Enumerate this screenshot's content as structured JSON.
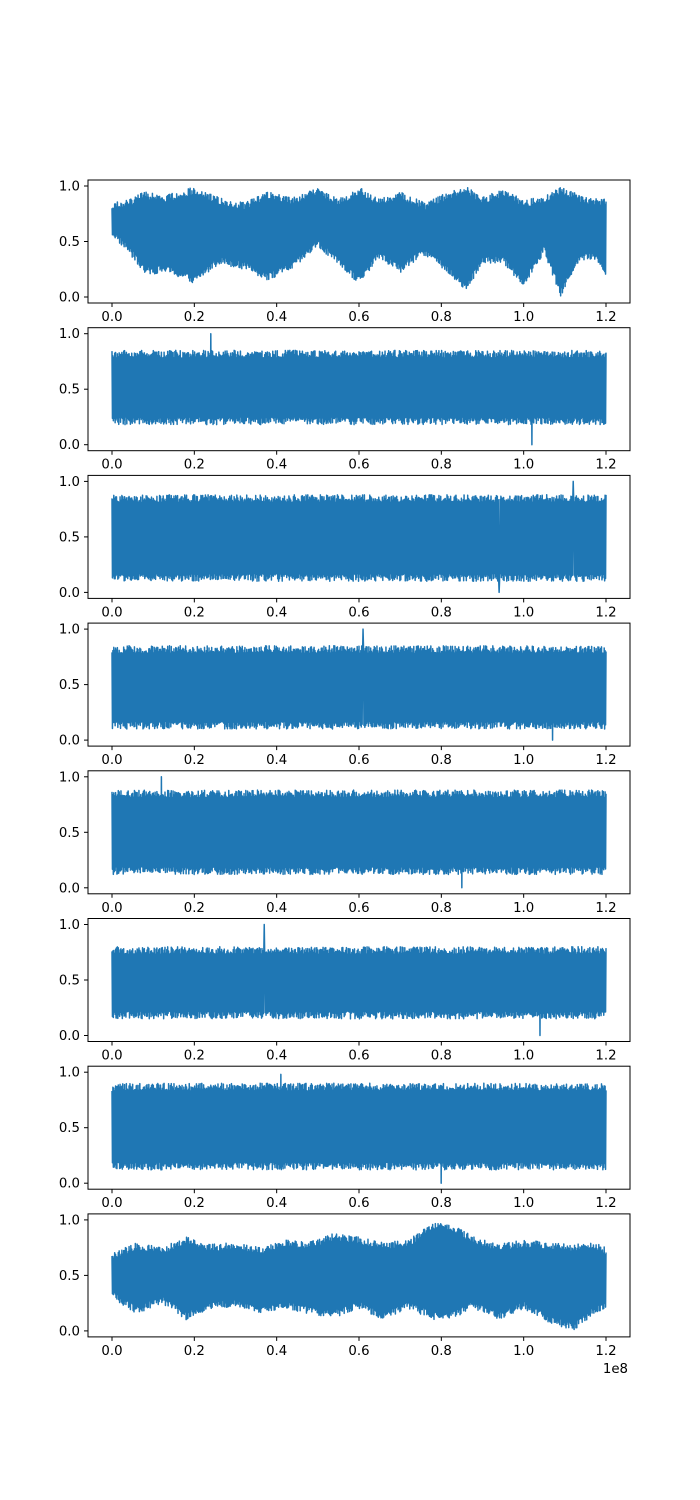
{
  "chart_data": {
    "type": "line",
    "layout": "8 vertically stacked panels sharing the same x range",
    "x_offset_label": "1e8",
    "series_color": "#1f77b4",
    "grid": false,
    "legend": "none",
    "panels": [
      {
        "xlim": [
          0,
          1.2
        ],
        "ylim": [
          0,
          1
        ],
        "x_ticks": [
          "0.0",
          "0.2",
          "0.4",
          "0.6",
          "0.8",
          "1.0",
          "1.2"
        ],
        "y_ticks": [
          "0.0",
          "0.5",
          "1.0"
        ],
        "description": "dense oscillation with slow beating envelope",
        "upper_envelope": {
          "x": [
            0.0,
            0.04,
            0.08,
            0.13,
            0.2,
            0.26,
            0.32,
            0.38,
            0.44,
            0.5,
            0.55,
            0.6,
            0.65,
            0.7,
            0.76,
            0.82,
            0.86,
            0.9,
            0.95,
            1.0,
            1.05,
            1.09,
            1.13,
            1.17,
            1.2
          ],
          "y": [
            0.85,
            0.88,
            0.95,
            0.92,
            0.99,
            0.9,
            0.85,
            0.95,
            0.9,
            0.98,
            0.88,
            0.99,
            0.88,
            0.95,
            0.85,
            0.95,
            1.0,
            0.9,
            0.97,
            0.88,
            0.9,
            1.0,
            0.93,
            0.88,
            0.9
          ]
        },
        "lower_envelope": {
          "x": [
            0.0,
            0.04,
            0.08,
            0.13,
            0.2,
            0.26,
            0.32,
            0.38,
            0.44,
            0.5,
            0.55,
            0.6,
            0.65,
            0.7,
            0.76,
            0.82,
            0.86,
            0.9,
            0.95,
            1.0,
            1.05,
            1.09,
            1.13,
            1.17,
            1.2
          ],
          "y": [
            0.55,
            0.4,
            0.2,
            0.22,
            0.12,
            0.3,
            0.25,
            0.15,
            0.25,
            0.45,
            0.28,
            0.12,
            0.35,
            0.22,
            0.38,
            0.2,
            0.05,
            0.3,
            0.3,
            0.1,
            0.4,
            0.0,
            0.3,
            0.35,
            0.2
          ]
        }
      },
      {
        "xlim": [
          0,
          1.2
        ],
        "ylim": [
          0,
          1
        ],
        "x_ticks": [
          "0.0",
          "0.2",
          "0.4",
          "0.6",
          "0.8",
          "1.0",
          "1.2"
        ],
        "y_ticks": [
          "0.0",
          "0.5",
          "1.0"
        ],
        "description": "dense noise band",
        "band_upper": 0.85,
        "band_lower": 0.18,
        "max_spike": {
          "x": 0.24,
          "y": 1.0
        },
        "min_spike": {
          "x": 1.02,
          "y": 0.0
        }
      },
      {
        "xlim": [
          0,
          1.2
        ],
        "ylim": [
          0,
          1
        ],
        "x_ticks": [
          "0.0",
          "0.2",
          "0.4",
          "0.6",
          "0.8",
          "1.0",
          "1.2"
        ],
        "y_ticks": [
          "0.0",
          "0.5",
          "1.0"
        ],
        "description": "dense noise band",
        "band_upper": 0.88,
        "band_lower": 0.1,
        "max_spike": {
          "x": 1.12,
          "y": 1.0
        },
        "min_spike": {
          "x": 0.94,
          "y": 0.0
        }
      },
      {
        "xlim": [
          0,
          1.2
        ],
        "ylim": [
          0,
          1
        ],
        "x_ticks": [
          "0.0",
          "0.2",
          "0.4",
          "0.6",
          "0.8",
          "1.0",
          "1.2"
        ],
        "y_ticks": [
          "0.0",
          "0.5",
          "1.0"
        ],
        "description": "dense noise band",
        "band_upper": 0.85,
        "band_lower": 0.1,
        "max_spike": {
          "x": 0.61,
          "y": 1.0
        },
        "min_spike": {
          "x": 1.07,
          "y": 0.0
        }
      },
      {
        "xlim": [
          0,
          1.2
        ],
        "ylim": [
          0,
          1
        ],
        "x_ticks": [
          "0.0",
          "0.2",
          "0.4",
          "0.6",
          "0.8",
          "1.0",
          "1.2"
        ],
        "y_ticks": [
          "0.0",
          "0.5",
          "1.0"
        ],
        "description": "dense noise band",
        "band_upper": 0.88,
        "band_lower": 0.12,
        "max_spike": {
          "x": 0.12,
          "y": 1.0
        },
        "min_spike": {
          "x": 0.85,
          "y": 0.0
        }
      },
      {
        "xlim": [
          0,
          1.2
        ],
        "ylim": [
          0,
          1
        ],
        "x_ticks": [
          "0.0",
          "0.2",
          "0.4",
          "0.6",
          "0.8",
          "1.0",
          "1.2"
        ],
        "y_ticks": [
          "0.0",
          "0.5",
          "1.0"
        ],
        "description": "dense noise band",
        "band_upper": 0.8,
        "band_lower": 0.15,
        "max_spike": {
          "x": 0.37,
          "y": 1.0
        },
        "min_spike": {
          "x": 1.04,
          "y": 0.0
        }
      },
      {
        "xlim": [
          0,
          1.2
        ],
        "ylim": [
          0,
          1
        ],
        "x_ticks": [
          "0.0",
          "0.2",
          "0.4",
          "0.6",
          "0.8",
          "1.0",
          "1.2"
        ],
        "y_ticks": [
          "0.0",
          "0.5",
          "1.0"
        ],
        "description": "dense noise band",
        "band_upper": 0.9,
        "band_lower": 0.12,
        "max_spike": {
          "x": 0.41,
          "y": 0.98
        },
        "min_spike": {
          "x": 0.8,
          "y": 0.0
        }
      },
      {
        "xlim": [
          0,
          1.2
        ],
        "ylim": [
          0,
          1
        ],
        "x_ticks": [
          "0.0",
          "0.2",
          "0.4",
          "0.6",
          "0.8",
          "1.0",
          "1.2"
        ],
        "y_ticks": [
          "0.0",
          "0.5",
          "1.0"
        ],
        "description": "dense oscillation with slow beating envelope",
        "upper_envelope": {
          "x": [
            0.0,
            0.06,
            0.12,
            0.18,
            0.24,
            0.3,
            0.36,
            0.42,
            0.48,
            0.54,
            0.6,
            0.66,
            0.72,
            0.78,
            0.83,
            0.88,
            0.94,
            1.0,
            1.06,
            1.12,
            1.17,
            1.2
          ],
          "y": [
            0.7,
            0.8,
            0.75,
            0.85,
            0.78,
            0.8,
            0.75,
            0.82,
            0.8,
            0.88,
            0.85,
            0.8,
            0.82,
            0.98,
            0.95,
            0.85,
            0.78,
            0.82,
            0.8,
            0.78,
            0.8,
            0.75
          ]
        },
        "lower_envelope": {
          "x": [
            0.0,
            0.06,
            0.12,
            0.18,
            0.24,
            0.3,
            0.36,
            0.42,
            0.48,
            0.54,
            0.6,
            0.66,
            0.72,
            0.78,
            0.83,
            0.88,
            0.94,
            1.0,
            1.06,
            1.12,
            1.17,
            1.2
          ],
          "y": [
            0.3,
            0.15,
            0.25,
            0.1,
            0.2,
            0.22,
            0.15,
            0.2,
            0.15,
            0.12,
            0.2,
            0.1,
            0.2,
            0.1,
            0.12,
            0.2,
            0.1,
            0.2,
            0.08,
            0.0,
            0.15,
            0.2
          ]
        }
      }
    ]
  }
}
